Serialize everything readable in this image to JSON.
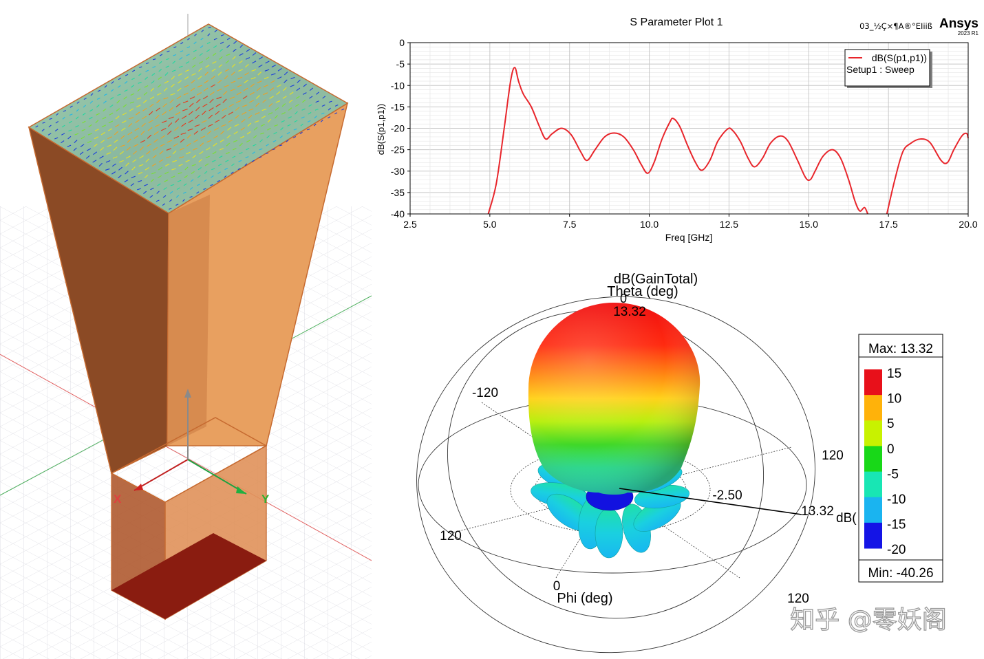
{
  "sparam_plot": {
    "title": "S Parameter Plot 1",
    "project_label": "03_½Ç×¶A®°EIiiß",
    "brand": "Ansys",
    "brand_version": "2023 R1",
    "legend": {
      "trace": "dB(S(p1,p1))",
      "setup": "Setup1 : Sweep"
    },
    "trace_color": "#e8252b",
    "xlabel": "Freq [GHz]",
    "ylabel": "dB(S(p1,p1))"
  },
  "chart_data": {
    "type": "line",
    "title": "S Parameter Plot 1",
    "xlabel": "Freq [GHz]",
    "ylabel": "dB(S(p1,p1))",
    "xlim": [
      2.5,
      20.0
    ],
    "ylim": [
      -40,
      0
    ],
    "grid": true,
    "legend_position": "top-right",
    "x_ticks": [
      "2.5",
      "5.0",
      "7.5",
      "10.0",
      "12.5",
      "15.0",
      "17.5",
      "20.0"
    ],
    "y_ticks": [
      "0",
      "-5",
      "-10",
      "-15",
      "-20",
      "-25",
      "-30",
      "-35",
      "-40"
    ],
    "series": [
      {
        "name": "dB(S(p1,p1))",
        "color": "#e8252b",
        "segments": [
          [
            [
              4.95,
              -40
            ],
            [
              5.2,
              -33
            ],
            [
              5.45,
              -20
            ],
            [
              5.65,
              -9
            ],
            [
              5.78,
              -5.8
            ],
            [
              5.9,
              -9
            ],
            [
              6.05,
              -12
            ],
            [
              6.3,
              -15
            ],
            [
              6.55,
              -19.5
            ],
            [
              6.75,
              -22.5
            ],
            [
              6.95,
              -21.3
            ],
            [
              7.25,
              -20
            ],
            [
              7.55,
              -21.5
            ],
            [
              7.85,
              -25.5
            ],
            [
              8.05,
              -27.5
            ],
            [
              8.3,
              -25
            ],
            [
              8.6,
              -22
            ],
            [
              8.9,
              -21.1
            ],
            [
              9.2,
              -22
            ],
            [
              9.5,
              -25
            ],
            [
              9.75,
              -28.5
            ],
            [
              9.95,
              -30.5
            ],
            [
              10.15,
              -28
            ],
            [
              10.4,
              -22.5
            ],
            [
              10.65,
              -18.5
            ],
            [
              10.75,
              -17.7
            ],
            [
              10.95,
              -19.5
            ],
            [
              11.2,
              -24
            ],
            [
              11.45,
              -28
            ],
            [
              11.65,
              -29.8
            ],
            [
              11.9,
              -27.5
            ],
            [
              12.15,
              -23
            ],
            [
              12.45,
              -20.2
            ],
            [
              12.6,
              -20.4
            ],
            [
              12.85,
              -23
            ],
            [
              13.1,
              -27
            ],
            [
              13.3,
              -29
            ],
            [
              13.55,
              -27
            ],
            [
              13.8,
              -23.5
            ],
            [
              14.1,
              -21.8
            ],
            [
              14.35,
              -23
            ],
            [
              14.65,
              -27.5
            ],
            [
              14.9,
              -31.5
            ],
            [
              15.05,
              -32
            ],
            [
              15.2,
              -30
            ],
            [
              15.45,
              -26.5
            ],
            [
              15.75,
              -25
            ],
            [
              16.0,
              -27
            ],
            [
              16.25,
              -32
            ],
            [
              16.45,
              -37
            ],
            [
              16.6,
              -39.3
            ],
            [
              16.75,
              -38.5
            ],
            [
              16.85,
              -40
            ]
          ],
          [
            [
              17.45,
              -40
            ],
            [
              17.7,
              -32
            ],
            [
              17.95,
              -25.5
            ],
            [
              18.2,
              -23.5
            ],
            [
              18.5,
              -22.5
            ],
            [
              18.8,
              -23.3
            ],
            [
              19.15,
              -27.5
            ],
            [
              19.35,
              -28
            ],
            [
              19.55,
              -25
            ],
            [
              19.8,
              -21.8
            ],
            [
              19.95,
              -21.2
            ],
            [
              20.0,
              -22.3
            ]
          ]
        ]
      }
    ]
  },
  "gain_plot": {
    "quantity": "dB(GainTotal)",
    "theta_label": "Theta (deg)",
    "theta_zero": "0",
    "top_value": "13.32",
    "phi_label": "Phi (deg)",
    "phi_zero": "0",
    "angle_labels": [
      "-120",
      "120",
      "120",
      "120"
    ],
    "ring_value": "-2.50",
    "radius_value": "13.32",
    "radius_unit": "dB("
  },
  "gain_legend": {
    "max_label": "Max: 13.32",
    "min_label": "Min: -40.26",
    "levels": [
      "15",
      "10",
      "5",
      "0",
      "-5",
      "-10",
      "-15",
      "-20"
    ],
    "colors": [
      "#e8101a",
      "#ffb20a",
      "#c8f200",
      "#18d818",
      "#18e6b4",
      "#1ab4f0",
      "#1414e6"
    ]
  },
  "watermark": "知乎 @零妖阁"
}
